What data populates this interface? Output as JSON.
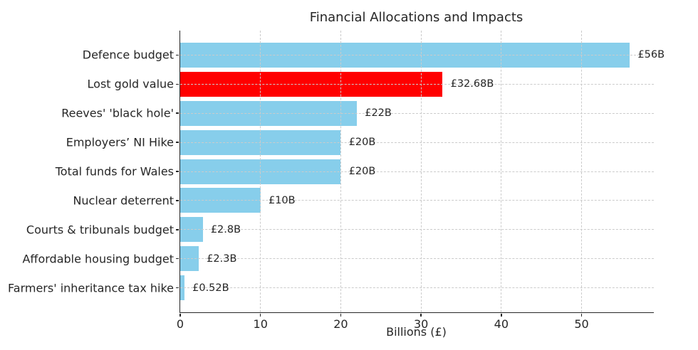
{
  "chart_data": {
    "type": "bar",
    "orientation": "horizontal",
    "title": "Financial Allocations and Impacts",
    "xlabel": "Billions (£)",
    "ylabel": "",
    "categories": [
      "Defence budget",
      "Lost gold value",
      "Reeves' 'black hole'",
      "Employers’ NI Hike",
      "Total funds for Wales",
      "Nuclear deterrent",
      "Courts & tribunals budget",
      "Affordable housing budget",
      "Farmers' inheritance tax hike"
    ],
    "values": [
      56,
      32.68,
      22,
      20,
      20,
      10,
      2.8,
      2.3,
      0.52
    ],
    "value_labels": [
      "£56B",
      "£32.68B",
      "£22B",
      "£20B",
      "£20B",
      "£10B",
      "£2.8B",
      "£2.3B",
      "£0.52B"
    ],
    "bar_colors": [
      "#87CEEB",
      "#FF0000",
      "#87CEEB",
      "#87CEEB",
      "#87CEEB",
      "#87CEEB",
      "#87CEEB",
      "#87CEEB",
      "#87CEEB"
    ],
    "xlim": [
      0,
      59
    ],
    "xticks": [
      0,
      10,
      20,
      30,
      40,
      50
    ],
    "grid": "dashed, both axes, drawn above bars",
    "legend": "none",
    "colors": {
      "default_bar": "#87CEEB",
      "highlight_bar": "#FF0000",
      "grid": "#cbcbcb",
      "axis": "#262626",
      "text": "#262626",
      "background": "#ffffff"
    }
  }
}
